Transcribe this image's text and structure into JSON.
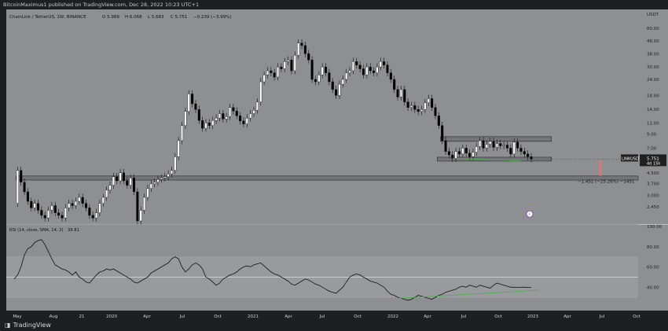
{
  "header": {
    "published_line": "BitcoinMaximus1 published on TradingView.com, Dec 28, 2022 10:23 UTC+1"
  },
  "footer": {
    "logo_icon": "tradingview-logo-icon",
    "brand": "TradingView"
  },
  "chart_data": {
    "type": "candlestick",
    "title": "ChainLink / TetherUS, 1W, BINANCE",
    "ohlc_legend": {
      "open": "O 5.989",
      "high": "H 6.068",
      "low": "L 5.683",
      "close": "C 5.751",
      "change": "−0.239 (−3.99%)"
    },
    "currency": "USDT",
    "y_scale": "log",
    "ylim": [
      1.9,
      73
    ],
    "y_ticks": [
      "60.00",
      "48.00",
      "38.00",
      "30.00",
      "24.00",
      "18.00",
      "14.00",
      "11.00",
      "9.00",
      "7.00",
      "5.751",
      "4.500",
      "3.700",
      "3.000",
      "2.450"
    ],
    "x_axis_labels": [
      "May",
      "Aug",
      "21",
      "2020",
      "Apr",
      "Jul",
      "Oct",
      "2021",
      "Apr",
      "Jul",
      "Oct",
      "2022",
      "Apr",
      "Jul",
      "Oct",
      "2023",
      "Apr",
      "Jul",
      "Oct"
    ],
    "price_tag": {
      "symbol": "LINKUSDT",
      "price": "5.751",
      "countdown": "4d 15h",
      "color": "#202020"
    },
    "measure_label": "−1.451 (−25.26%) −1451",
    "candle_colors": {
      "up": "#ffffff",
      "down": "#000000"
    },
    "price_path": [
      [
        0,
        2.6
      ],
      [
        1,
        4.7
      ],
      [
        2,
        3.8
      ],
      [
        3,
        3.2
      ],
      [
        4,
        2.7
      ],
      [
        5,
        2.4
      ],
      [
        6,
        2.6
      ],
      [
        7,
        2.3
      ],
      [
        8,
        2.1
      ],
      [
        9,
        2.0
      ],
      [
        10,
        2.3
      ],
      [
        11,
        2.5
      ],
      [
        12,
        2.2
      ],
      [
        13,
        2.1
      ],
      [
        14,
        2.0
      ],
      [
        15,
        2.4
      ],
      [
        16,
        2.6
      ],
      [
        17,
        2.5
      ],
      [
        18,
        2.7
      ],
      [
        19,
        2.9
      ],
      [
        20,
        2.6
      ],
      [
        21,
        2.4
      ],
      [
        22,
        2.1
      ],
      [
        23,
        2.0
      ],
      [
        24,
        2.2
      ],
      [
        25,
        2.6
      ],
      [
        26,
        2.9
      ],
      [
        27,
        3.3
      ],
      [
        28,
        3.6
      ],
      [
        29,
        4.2
      ],
      [
        30,
        3.9
      ],
      [
        31,
        4.5
      ],
      [
        32,
        3.9
      ],
      [
        33,
        3.6
      ],
      [
        34,
        4.1
      ],
      [
        35,
        3.2
      ],
      [
        36,
        1.9
      ],
      [
        37,
        2.3
      ],
      [
        38,
        2.9
      ],
      [
        39,
        3.4
      ],
      [
        40,
        3.7
      ],
      [
        41,
        3.8
      ],
      [
        42,
        4.0
      ],
      [
        43,
        4.1
      ],
      [
        44,
        4.2
      ],
      [
        45,
        4.4
      ],
      [
        46,
        4.7
      ],
      [
        47,
        6.0
      ],
      [
        48,
        8.0
      ],
      [
        49,
        10.5
      ],
      [
        50,
        13.5
      ],
      [
        51,
        18.5
      ],
      [
        52,
        15.5
      ],
      [
        53,
        14.0
      ],
      [
        54,
        11.5
      ],
      [
        55,
        10.0
      ],
      [
        56,
        11.0
      ],
      [
        57,
        10.5
      ],
      [
        58,
        11.5
      ],
      [
        59,
        12.0
      ],
      [
        60,
        13.0
      ],
      [
        61,
        11.8
      ],
      [
        62,
        12.3
      ],
      [
        63,
        14.5
      ],
      [
        64,
        13.6
      ],
      [
        65,
        12.5
      ],
      [
        66,
        11.4
      ],
      [
        67,
        10.8
      ],
      [
        68,
        12.0
      ],
      [
        69,
        13.0
      ],
      [
        70,
        13.8
      ],
      [
        71,
        16.0
      ],
      [
        72,
        23.0
      ],
      [
        73,
        26.0
      ],
      [
        74,
        28.0
      ],
      [
        75,
        27.0
      ],
      [
        76,
        25.0
      ],
      [
        77,
        30.0
      ],
      [
        78,
        29.0
      ],
      [
        79,
        33.0
      ],
      [
        80,
        34.0
      ],
      [
        81,
        28.0
      ],
      [
        82,
        37.0
      ],
      [
        83,
        46.0
      ],
      [
        84,
        44.0
      ],
      [
        85,
        38.0
      ],
      [
        86,
        34.0
      ],
      [
        87,
        24.0
      ],
      [
        88,
        23.0
      ],
      [
        89,
        26.0
      ],
      [
        90,
        30.0
      ],
      [
        91,
        27.0
      ],
      [
        92,
        23.0
      ],
      [
        93,
        20.0
      ],
      [
        94,
        18.0
      ],
      [
        95,
        22.0
      ],
      [
        96,
        24.0
      ],
      [
        97,
        27.0
      ],
      [
        98,
        28.0
      ],
      [
        99,
        33.0
      ],
      [
        100,
        31.0
      ],
      [
        101,
        29.0
      ],
      [
        102,
        26.0
      ],
      [
        103,
        30.0
      ],
      [
        104,
        28.0
      ],
      [
        105,
        27.0
      ],
      [
        106,
        30.0
      ],
      [
        107,
        33.0
      ],
      [
        108,
        31.0
      ],
      [
        109,
        27.0
      ],
      [
        110,
        24.0
      ],
      [
        111,
        20.0
      ],
      [
        112,
        17.5
      ],
      [
        113,
        20.0
      ],
      [
        114,
        16.0
      ],
      [
        115,
        14.5
      ],
      [
        116,
        15.0
      ],
      [
        117,
        14.0
      ],
      [
        118,
        13.5
      ],
      [
        119,
        14.0
      ],
      [
        120,
        15.8
      ],
      [
        121,
        17.0
      ],
      [
        122,
        14.5
      ],
      [
        123,
        12.5
      ],
      [
        124,
        10.5
      ],
      [
        125,
        8.0
      ],
      [
        126,
        6.6
      ],
      [
        127,
        6.2
      ],
      [
        128,
        5.8
      ],
      [
        129,
        6.6
      ],
      [
        130,
        6.3
      ],
      [
        131,
        7.0
      ],
      [
        132,
        6.4
      ],
      [
        133,
        6.0
      ],
      [
        134,
        6.5
      ],
      [
        135,
        7.2
      ],
      [
        136,
        8.0
      ],
      [
        137,
        7.0
      ],
      [
        138,
        7.5
      ],
      [
        139,
        7.9
      ],
      [
        140,
        7.1
      ],
      [
        141,
        7.6
      ],
      [
        142,
        7.3
      ],
      [
        143,
        7.4
      ],
      [
        144,
        7.0
      ],
      [
        145,
        6.3
      ],
      [
        146,
        7.8
      ],
      [
        147,
        7.0
      ],
      [
        148,
        6.6
      ],
      [
        149,
        6.3
      ],
      [
        150,
        6.0
      ],
      [
        151,
        5.751
      ]
    ],
    "resistance_zone": [
      7.9,
      8.6
    ],
    "support_zone": [
      5.55,
      5.95
    ],
    "long_support_zone": [
      3.95,
      4.25
    ],
    "rsi": {
      "label": "RSI (14, close, SMA, 14, 2)",
      "value": "39.81",
      "ticks": [
        "100.00",
        "80.00",
        "60.00",
        "40.00"
      ],
      "levels": [
        70,
        50,
        30
      ],
      "values": [
        48,
        52,
        60,
        72,
        78,
        80,
        84,
        86,
        87,
        82,
        75,
        68,
        62,
        60,
        58,
        57,
        55,
        52,
        55,
        50,
        48,
        45,
        44,
        48,
        52,
        55,
        56,
        58,
        57,
        58,
        56,
        54,
        52,
        50,
        48,
        45,
        44,
        46,
        48,
        50,
        54,
        56,
        58,
        60,
        62,
        64,
        68,
        70,
        68,
        60,
        55,
        58,
        62,
        64,
        62,
        58,
        50,
        48,
        45,
        42,
        44,
        48,
        50,
        52,
        53,
        55,
        58,
        60,
        61,
        60,
        62,
        63,
        64,
        61,
        58,
        55,
        53,
        52,
        50,
        48,
        46,
        43,
        42,
        44,
        46,
        48,
        47,
        45,
        43,
        42,
        40,
        38,
        36,
        35,
        34,
        37,
        40,
        45,
        50,
        52,
        53,
        52,
        50,
        48,
        46,
        45,
        44,
        42,
        40,
        36,
        33,
        32,
        30,
        29,
        28,
        27,
        28,
        30,
        32,
        31,
        30,
        29,
        28,
        30,
        32,
        33,
        35,
        36,
        37,
        38,
        40,
        41,
        40,
        42,
        41,
        40,
        42,
        41,
        40,
        39,
        42,
        44,
        43,
        42,
        41,
        40,
        40,
        39.81,
        40,
        40,
        39.8,
        39.81
      ]
    }
  }
}
